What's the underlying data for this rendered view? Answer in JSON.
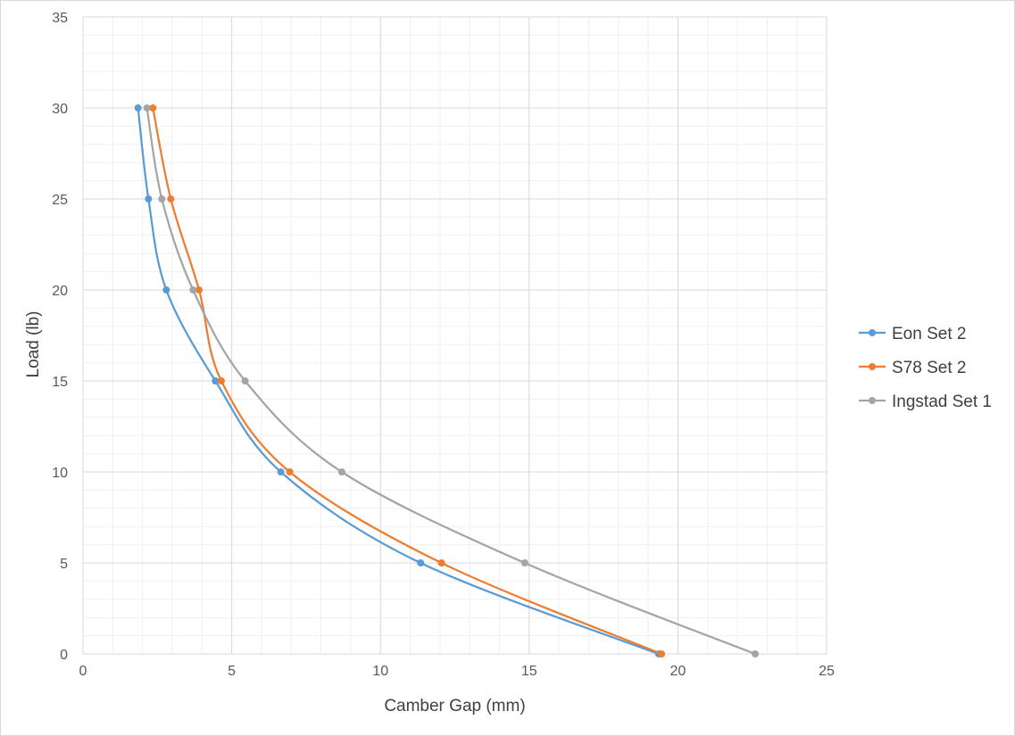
{
  "chart_data": {
    "type": "scatter",
    "title": "",
    "xlabel": "Camber Gap (mm)",
    "ylabel": "Load (lb)",
    "xlim": [
      0,
      25
    ],
    "ylim": [
      0,
      35
    ],
    "x_ticks": [
      0,
      5,
      10,
      15,
      20,
      25
    ],
    "y_ticks": [
      0,
      5,
      10,
      15,
      20,
      25,
      30,
      35
    ],
    "grid": "major and minor",
    "legend_position": "right",
    "lines": "smoothed with markers",
    "series": [
      {
        "name": "Eon Set 2",
        "color": "#5B9BD5",
        "points": [
          [
            19.35,
            0
          ],
          [
            11.35,
            5
          ],
          [
            6.65,
            10
          ],
          [
            4.45,
            15
          ],
          [
            2.8,
            20
          ],
          [
            2.2,
            25
          ],
          [
            1.85,
            30
          ]
        ]
      },
      {
        "name": "S78 Set 2",
        "color": "#ED7D31",
        "points": [
          [
            19.45,
            0
          ],
          [
            12.05,
            5
          ],
          [
            6.95,
            10
          ],
          [
            4.65,
            15
          ],
          [
            3.9,
            20
          ],
          [
            2.95,
            25
          ],
          [
            2.35,
            30
          ]
        ]
      },
      {
        "name": "Ingstad Set 1",
        "color": "#A5A5A5",
        "points": [
          [
            22.6,
            0
          ],
          [
            14.85,
            5
          ],
          [
            8.7,
            10
          ],
          [
            5.45,
            15
          ],
          [
            3.7,
            20
          ],
          [
            2.65,
            25
          ],
          [
            2.15,
            30
          ]
        ]
      }
    ]
  }
}
